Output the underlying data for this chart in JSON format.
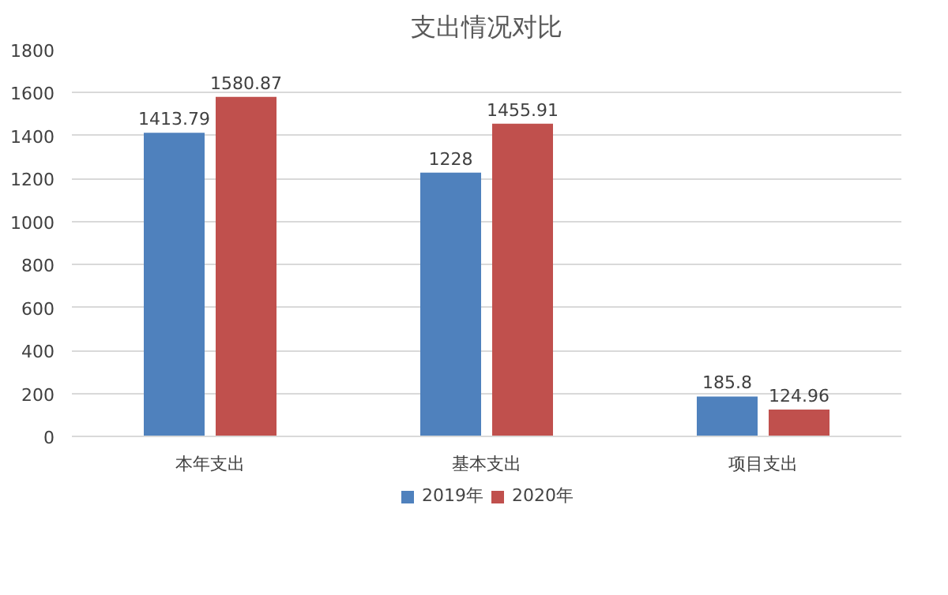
{
  "chart_data": {
    "type": "bar",
    "title": "支出情况对比",
    "categories": [
      "本年支出",
      "基本支出",
      "项目支出"
    ],
    "series": [
      {
        "name": "2019年",
        "color": "#4f81bd",
        "values": [
          1413.79,
          1228,
          185.8
        ]
      },
      {
        "name": "2020年",
        "color": "#c0504d",
        "values": [
          1580.87,
          1455.91,
          124.96
        ]
      }
    ],
    "ylim": [
      0,
      1800
    ],
    "yticks": [
      0,
      200,
      400,
      600,
      800,
      1000,
      1200,
      1400,
      1600,
      1800
    ],
    "grid": "y",
    "legend": "bottom",
    "data_labels": true
  }
}
